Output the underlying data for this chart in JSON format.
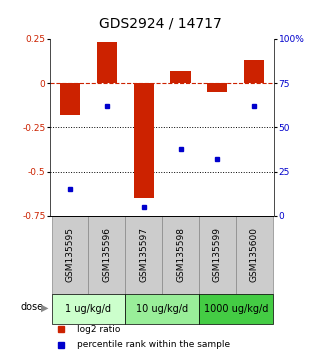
{
  "title": "GDS2924 / 14717",
  "samples": [
    "GSM135595",
    "GSM135596",
    "GSM135597",
    "GSM135598",
    "GSM135599",
    "GSM135600"
  ],
  "log2_ratio": [
    -0.18,
    0.23,
    -0.65,
    0.07,
    -0.05,
    0.13
  ],
  "percentile_rank": [
    15,
    62,
    5,
    38,
    32,
    62
  ],
  "left_ylim": [
    -0.75,
    0.25
  ],
  "right_ylim": [
    0,
    100
  ],
  "left_yticks": [
    0.25,
    0,
    -0.25,
    -0.5,
    -0.75
  ],
  "right_yticks": [
    100,
    75,
    50,
    25,
    0
  ],
  "right_yticklabels": [
    "100%",
    "75",
    "50",
    "25",
    "0"
  ],
  "bar_color": "#cc2200",
  "dot_color": "#0000cc",
  "hline_color": "#cc2200",
  "dotted_lines": [
    -0.25,
    -0.5
  ],
  "dose_groups": [
    {
      "label": "1 ug/kg/d",
      "samples": [
        0,
        1
      ],
      "color": "#ccffcc"
    },
    {
      "label": "10 ug/kg/d",
      "samples": [
        2,
        3
      ],
      "color": "#99ee99"
    },
    {
      "label": "1000 ug/kg/d",
      "samples": [
        4,
        5
      ],
      "color": "#44cc44"
    }
  ],
  "dose_label": "dose",
  "legend_bar_label": "log2 ratio",
  "legend_dot_label": "percentile rank within the sample",
  "bar_width": 0.55,
  "title_fontsize": 10,
  "tick_fontsize": 6.5,
  "label_fontsize": 6.5,
  "dose_fontsize": 7,
  "legend_fontsize": 6.5,
  "sample_bg": "#cccccc",
  "sample_edgecolor": "#888888"
}
